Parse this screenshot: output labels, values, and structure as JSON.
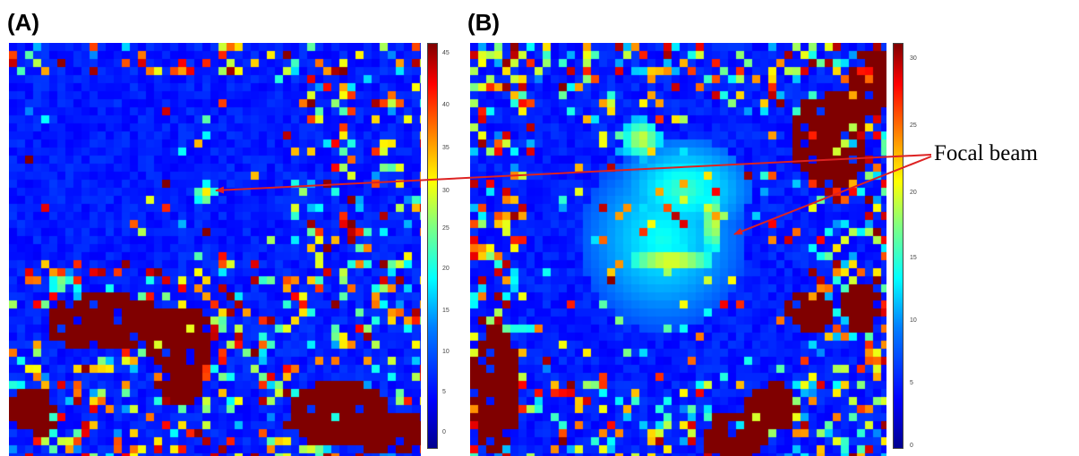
{
  "panels": [
    {
      "label": "(A)",
      "colorbar_ticks": [
        "45",
        "40",
        "35",
        "30",
        "25",
        "20",
        "15",
        "10",
        "5",
        "0"
      ]
    },
    {
      "label": "(B)",
      "colorbar_ticks": [
        "30",
        "25",
        "20",
        "15",
        "10",
        "5",
        "0"
      ]
    }
  ],
  "annotation": {
    "text": "Focal beam",
    "arrow_color": "#dd2222"
  },
  "colormap": "jet",
  "colors": {
    "background_blue": "#0a2bd6",
    "saturated_red": "#800000"
  }
}
